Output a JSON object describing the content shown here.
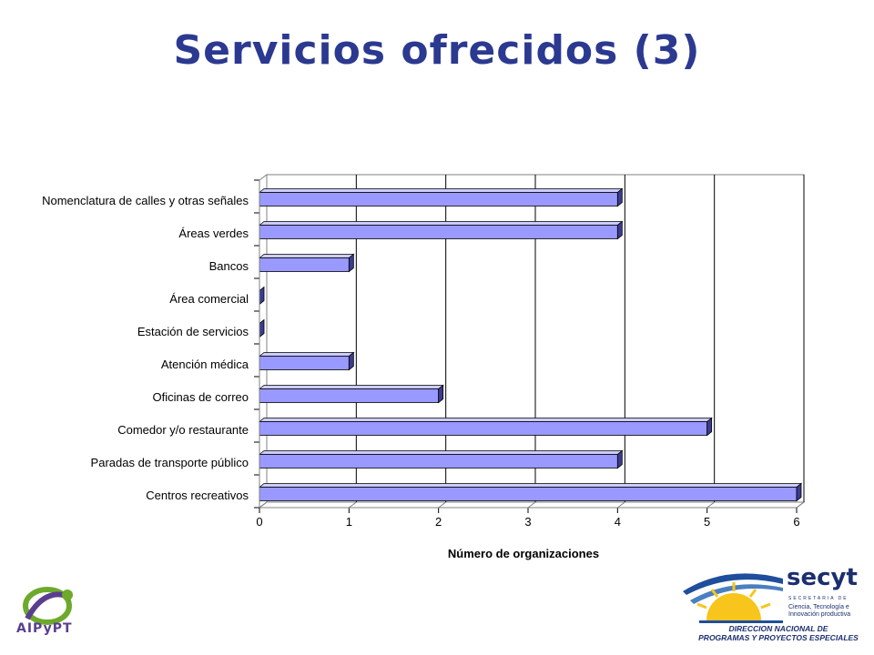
{
  "slide": {
    "title": "Servicios ofrecidos (3)"
  },
  "colors": {
    "title": "#2B3990",
    "bar_front": "#9999FF",
    "bar_top": "#CCCCFF",
    "bar_side": "#3B3B8F",
    "logo_green": "#6DAA2C",
    "logo_purple": "#5A3E8E",
    "secyt_blue": "#1E4E9C",
    "secyt_yellow": "#F7C51B",
    "secyt_text": "#1B2F6E"
  },
  "chart_data": {
    "type": "bar",
    "orientation": "horizontal",
    "categories": [
      "Nomenclatura de calles y otras señales",
      "Áreas verdes",
      "Bancos",
      "Área comercial",
      "Estación de servicios",
      "Atención médica",
      "Oficinas de correo",
      "Comedor y/o restaurante",
      "Paradas de transporte público",
      "Centros recreativos"
    ],
    "values": [
      4,
      4,
      1,
      0,
      0,
      1,
      2,
      5,
      4,
      6
    ],
    "xlabel": "Número de organizaciones",
    "xlim": [
      0,
      6
    ],
    "xticks": [
      "0",
      "1",
      "2",
      "3",
      "4",
      "5",
      "6"
    ],
    "grid": "vertical",
    "style": "3d"
  },
  "logos": {
    "left_text": "AIPyPT",
    "right_name": "secyt",
    "right_sub1": "SECRETARIA DE",
    "right_sub2": "Ciencia, Tecnología e Innovación productiva",
    "right_line1": "DIRECCION NACIONAL DE",
    "right_line2": "PROGRAMAS Y PROYECTOS ESPECIALES"
  }
}
